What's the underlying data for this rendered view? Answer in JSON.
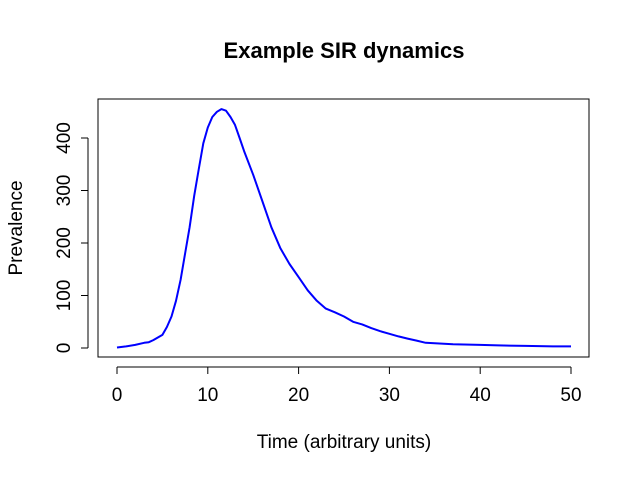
{
  "chart_data": {
    "type": "line",
    "title": "Example SIR dynamics",
    "xlabel": "Time (arbitrary units)",
    "ylabel": "Prevalence",
    "xlim": [
      0,
      50
    ],
    "ylim": [
      0,
      458
    ],
    "xticks": [
      0,
      10,
      20,
      30,
      40,
      50
    ],
    "yticks": [
      0,
      100,
      200,
      300,
      400
    ],
    "grid": false,
    "series": [
      {
        "color": "#0000ff",
        "x": [
          0,
          1,
          2,
          3,
          3.5,
          4,
          5,
          5.5,
          6,
          6.5,
          7,
          7.5,
          8,
          8.5,
          9,
          9.5,
          10,
          10.5,
          11,
          11.5,
          12,
          12.5,
          13,
          13.5,
          14,
          15,
          16,
          17,
          18,
          19,
          20,
          21,
          22,
          23,
          24,
          25,
          26,
          27,
          28,
          29,
          30,
          31,
          32,
          33,
          34,
          35,
          37,
          40,
          42,
          45,
          48,
          50
        ],
        "y": [
          1,
          3,
          6,
          10,
          11,
          15,
          25,
          40,
          60,
          90,
          130,
          180,
          230,
          290,
          340,
          390,
          420,
          440,
          450,
          455,
          452,
          440,
          425,
          400,
          375,
          330,
          280,
          230,
          190,
          160,
          135,
          110,
          90,
          75,
          68,
          60,
          50,
          45,
          38,
          32,
          27,
          22,
          18,
          14,
          10,
          9,
          7,
          6,
          5,
          4,
          3,
          3
        ]
      }
    ]
  }
}
